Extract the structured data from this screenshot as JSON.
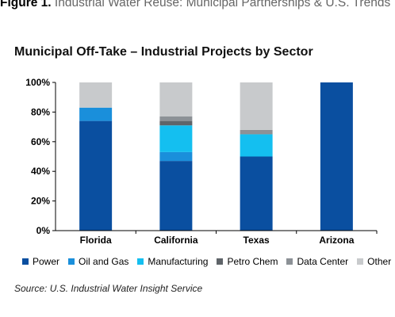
{
  "figure": {
    "label": "Figure 1.",
    "title": "Industrial Water Reuse: Municipal Partnerships & U.S. Trends"
  },
  "chart_data": {
    "type": "bar",
    "stacked": true,
    "title": "Municipal Off-Take – Industrial Projects by Sector",
    "xlabel": "",
    "ylabel": "",
    "categories": [
      "Florida",
      "California",
      "Texas",
      "Arizona"
    ],
    "ylim": [
      0,
      100
    ],
    "yticks": [
      0,
      20,
      40,
      60,
      80,
      100
    ],
    "ytick_labels": [
      "0%",
      "20%",
      "40%",
      "60%",
      "80%",
      "100%"
    ],
    "grid": false,
    "legend_position": "bottom",
    "series": [
      {
        "name": "Power",
        "color": "#0a4fa0",
        "values": [
          74,
          47,
          50,
          100
        ]
      },
      {
        "name": "Oil and Gas",
        "color": "#1a8fdb",
        "values": [
          9,
          6,
          0,
          0
        ]
      },
      {
        "name": "Manufacturing",
        "color": "#14bff0",
        "values": [
          0,
          18,
          15,
          0
        ]
      },
      {
        "name": "Petro Chem",
        "color": "#5f6469",
        "values": [
          0,
          3,
          0,
          0
        ]
      },
      {
        "name": "Data Center",
        "color": "#8c9196",
        "values": [
          0,
          3,
          3,
          0
        ]
      },
      {
        "name": "Other",
        "color": "#c8cacc",
        "values": [
          17,
          23,
          32,
          0
        ]
      }
    ]
  },
  "source": "Source: U.S. Industrial Water Insight Service"
}
